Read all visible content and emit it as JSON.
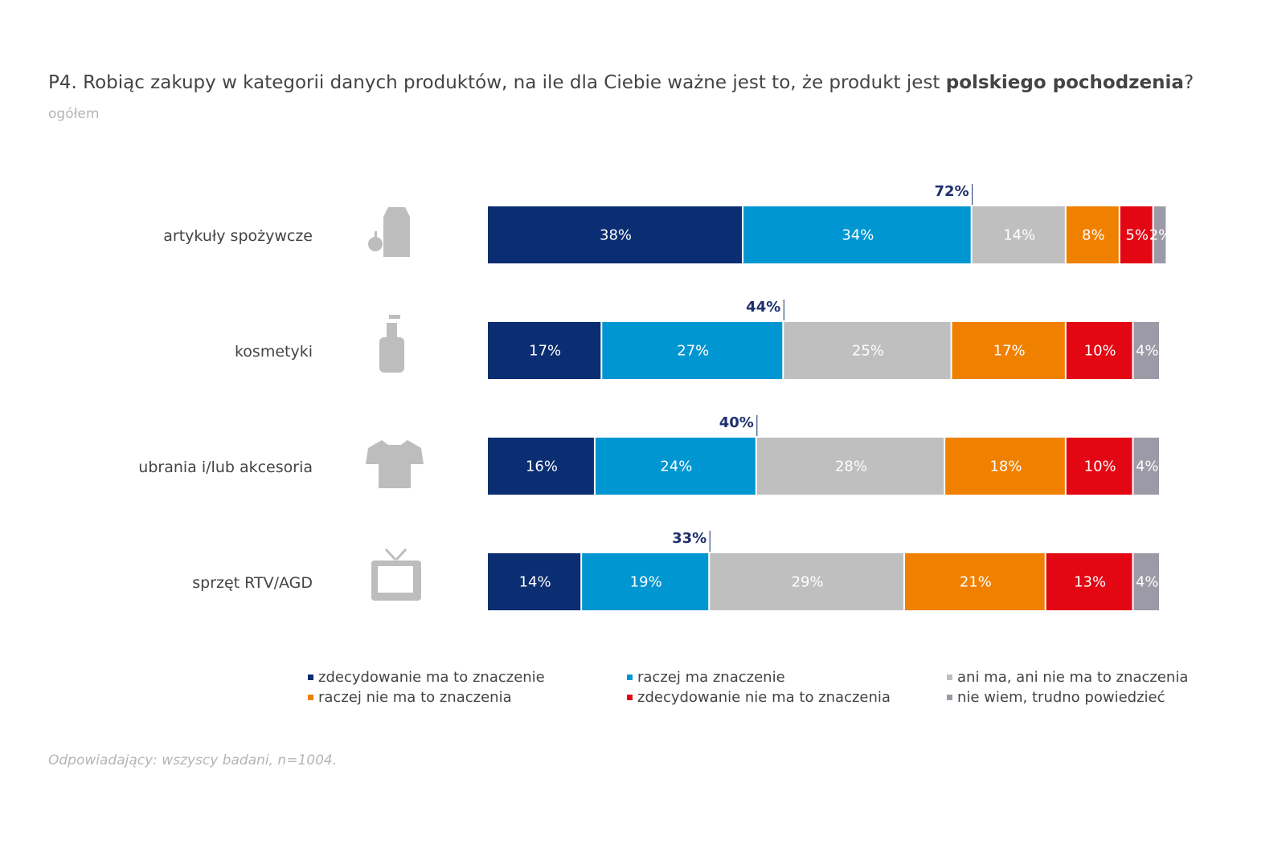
{
  "chart_data": {
    "type": "stacked_bar_horizontal",
    "title": [
      "P4. Robiąc zakupy w kategorii danych produktów, na ile dla Ciebie ważne jest to, że produkt jest ",
      "polskiego pochodzenia",
      "?"
    ],
    "subtitle": "ogółem",
    "footnote": "Odpowiadający: wszyscy badani, n=1004.",
    "categories": [
      "artykuły spożywcze",
      "kosmetyki",
      "ubrania i/lub akcesoria",
      "sprzęt RTV/AGD"
    ],
    "xlim": [
      0,
      100
    ],
    "series": [
      {
        "name": "zdecydowanie ma to znaczenie",
        "color": "#0b2d72",
        "values": [
          38,
          17,
          16,
          14
        ],
        "value_labels": [
          "38%",
          "17%",
          "16%",
          "14%"
        ]
      },
      {
        "name": "raczej ma znaczenie",
        "color": "#0096d1",
        "values": [
          34,
          27,
          24,
          19
        ],
        "value_labels": [
          "34%",
          "27%",
          "24%",
          "19%"
        ]
      },
      {
        "name": "ani ma, ani nie ma to znaczenia",
        "color": "#bfbfbf",
        "values": [
          14,
          25,
          28,
          29
        ],
        "value_labels": [
          "14%",
          "25%",
          "28%",
          "29%"
        ]
      },
      {
        "name": "raczej nie ma to znaczenia",
        "color": "#f08000",
        "values": [
          8,
          17,
          18,
          21
        ],
        "value_labels": [
          "8%",
          "17%",
          "18%",
          "21%"
        ]
      },
      {
        "name": "zdecydowanie nie ma to znaczenia",
        "color": "#e30613",
        "values": [
          5,
          10,
          10,
          13
        ],
        "value_labels": [
          "5%",
          "10%",
          "10%",
          "13%"
        ]
      },
      {
        "name": "nie wiem, trudno powiedzieć",
        "color": "#9b9aa6",
        "values": [
          2,
          4,
          4,
          4
        ],
        "value_labels": [
          "2%",
          "4%",
          "4%",
          "4%"
        ]
      }
    ],
    "totals": {
      "values": [
        72,
        44,
        40,
        33
      ],
      "value_labels": [
        "72%",
        "44%",
        "40%",
        "33%"
      ]
    }
  }
}
